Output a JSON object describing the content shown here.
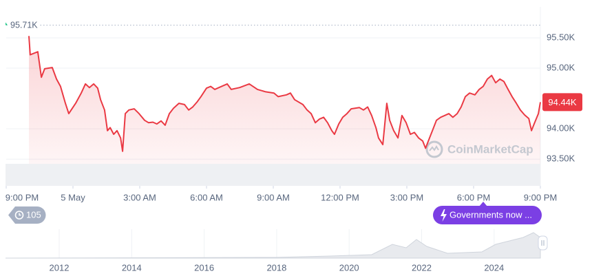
{
  "chart_data": {
    "type": "line",
    "color": "#ea3943",
    "x": [
      1.02,
      1.08,
      1.42,
      1.58,
      1.73,
      2.07,
      2.26,
      2.44,
      2.66,
      2.81,
      3.12,
      3.37,
      3.56,
      3.74,
      3.93,
      4.11,
      4.24,
      4.42,
      4.55,
      4.67,
      4.83,
      4.98,
      5.14,
      5.23,
      5.35,
      5.51,
      5.75,
      5.97,
      6.22,
      6.4,
      6.59,
      6.77,
      6.96,
      7.14,
      7.33,
      7.52,
      7.76,
      8.01,
      8.2,
      8.38,
      8.57,
      8.75,
      9.0,
      9.19,
      9.37,
      9.56,
      9.93,
      10.11,
      10.49,
      10.92,
      11.29,
      11.66,
      12.03,
      12.22,
      12.59,
      12.77,
      12.96,
      13.33,
      13.52,
      13.7,
      13.89,
      14.07,
      14.26,
      14.44,
      14.63,
      14.75,
      14.94,
      15.12,
      15.31,
      15.5,
      15.87,
      16.05,
      16.24,
      16.42,
      16.61,
      16.73,
      16.92,
      17.1,
      17.23,
      17.41,
      17.6,
      17.78,
      17.97,
      18.16,
      18.34,
      18.53,
      18.71,
      18.84,
      19.02,
      19.15,
      19.33,
      19.52,
      19.7,
      19.89,
      20.07,
      20.26,
      20.44,
      20.63,
      20.82,
      21.06,
      21.25,
      21.43,
      21.62,
      21.81,
      21.99,
      22.18,
      22.36,
      22.55,
      22.73,
      22.92,
      23.1,
      23.29,
      23.48,
      23.6,
      23.72,
      23.91,
      24.0
    ],
    "values": [
      95530,
      95220,
      95270,
      94850,
      94990,
      95010,
      94820,
      94700,
      94420,
      94250,
      94420,
      94590,
      94740,
      94680,
      94740,
      94670,
      94480,
      94310,
      93970,
      94020,
      93910,
      93970,
      93850,
      93630,
      94250,
      94310,
      94330,
      94250,
      94140,
      94100,
      94110,
      94080,
      94130,
      94060,
      94250,
      94340,
      94420,
      94400,
      94310,
      94360,
      94440,
      94530,
      94670,
      94700,
      94650,
      94680,
      94740,
      94650,
      94680,
      94740,
      94650,
      94610,
      94590,
      94530,
      94560,
      94590,
      94480,
      94400,
      94310,
      94250,
      94100,
      94160,
      94190,
      94100,
      93970,
      93910,
      94080,
      94190,
      94250,
      94330,
      94350,
      94310,
      94360,
      94220,
      94020,
      93850,
      93740,
      94420,
      94140,
      93970,
      93850,
      94220,
      94100,
      93910,
      93940,
      93850,
      93800,
      93680,
      93850,
      93970,
      94140,
      94190,
      94220,
      94250,
      94190,
      94250,
      94360,
      94530,
      94590,
      94560,
      94650,
      94700,
      94820,
      94880,
      94760,
      94820,
      94780,
      94650,
      94530,
      94420,
      94310,
      94230,
      94170,
      93970,
      94080,
      94250,
      94440
    ],
    "xlim": [
      0,
      24
    ],
    "xticks": [
      {
        "value": 0,
        "label": "9:00 PM"
      },
      {
        "value": 3,
        "label": "5 May"
      },
      {
        "value": 6,
        "label": "3:00 AM"
      },
      {
        "value": 9,
        "label": "6:00 AM"
      },
      {
        "value": 12,
        "label": "9:00 AM"
      },
      {
        "value": 15,
        "label": "12:00 PM"
      },
      {
        "value": 18,
        "label": "3:00 PM"
      },
      {
        "value": 21,
        "label": "6:00 PM"
      },
      {
        "value": 24,
        "label": "9:00 PM"
      }
    ],
    "ylim": [
      93060,
      96010
    ],
    "yticks": [
      {
        "value": 93500,
        "label": "93.50K"
      },
      {
        "value": 94000,
        "label": "94.00K"
      },
      {
        "value": 95000,
        "label": "95.00K"
      },
      {
        "value": 95500,
        "label": "95.50K"
      }
    ],
    "grid": true,
    "high": {
      "value": 95710,
      "label": "95.71K"
    },
    "current": {
      "value": 94440,
      "label": "94.44K"
    },
    "watermark": "CoinMarketCap"
  },
  "badges": {
    "alerts": 105,
    "news": "Governments now ..."
  },
  "navigator": {
    "labels": [
      "2012",
      "2014",
      "2016",
      "2018",
      "2020",
      "2022",
      "2024"
    ]
  }
}
